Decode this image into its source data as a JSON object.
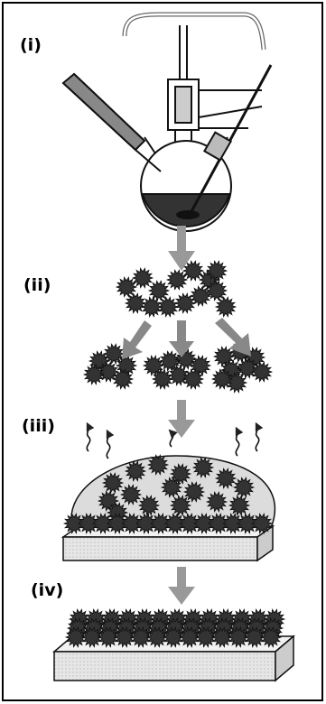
{
  "labels": [
    "(i)",
    "(ii)",
    "(iii)",
    "(iv)"
  ]
}
